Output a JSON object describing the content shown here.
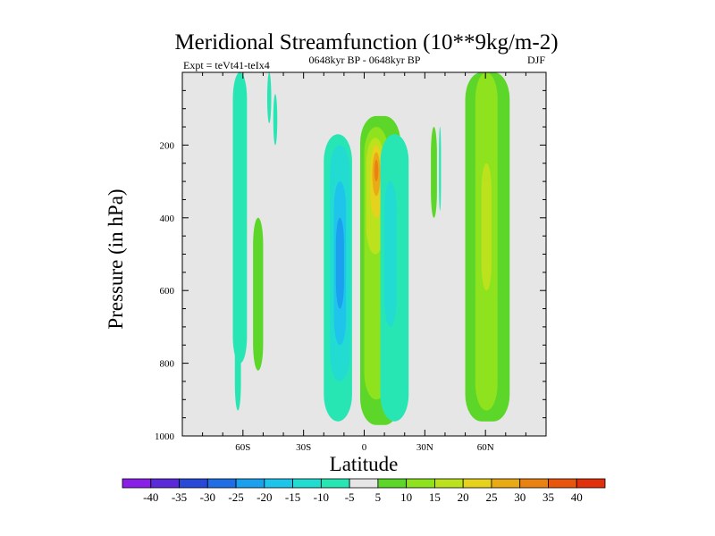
{
  "chart_data": {
    "type": "contour",
    "title": "Meridional Streamfunction (10**9kg/m-2)",
    "subtitle_left": "Expt = teVt41-teIx4",
    "subtitle_center": "0648kyr BP - 0648kyr BP",
    "subtitle_right": "DJF",
    "xlabel": "Latitude",
    "ylabel": "Pressure (in hPa)",
    "xlim": [
      -90,
      90
    ],
    "ylim": [
      1000,
      0
    ],
    "x_ticks": [
      {
        "value": -60,
        "label": "60S"
      },
      {
        "value": -30,
        "label": "30S"
      },
      {
        "value": 0,
        "label": "0"
      },
      {
        "value": 30,
        "label": "30N"
      },
      {
        "value": 60,
        "label": "60N"
      }
    ],
    "y_ticks": [
      {
        "value": 200,
        "label": "200"
      },
      {
        "value": 400,
        "label": "400"
      },
      {
        "value": 600,
        "label": "600"
      },
      {
        "value": 800,
        "label": "800"
      },
      {
        "value": 1000,
        "label": "1000"
      }
    ],
    "background_color": "#e6e6e6",
    "colorbar": {
      "levels": [
        "-40",
        "-35",
        "-30",
        "-25",
        "-20",
        "-15",
        "-10",
        "-5",
        "5",
        "10",
        "15",
        "20",
        "25",
        "30",
        "35",
        "40"
      ],
      "colors": [
        "#8a20e8",
        "#5a2ad8",
        "#2848d8",
        "#1f6ee6",
        "#1aa0ee",
        "#1ec4ea",
        "#22dcd2",
        "#28e6b4",
        "#e6e6e6",
        "#5cd628",
        "#8ee21e",
        "#bce21e",
        "#e6d21c",
        "#eaaa16",
        "#ea8212",
        "#e8560e",
        "#e0300c"
      ]
    },
    "regions": [
      {
        "name": "band-sh-upper-neg",
        "level": -5,
        "lat": [
          -65,
          -58
        ],
        "p": [
          0,
          800
        ]
      },
      {
        "name": "band-sh-narrow-neg",
        "level": -5,
        "lat": [
          -64,
          -61
        ],
        "p": [
          600,
          930
        ]
      },
      {
        "name": "band-sh-pos",
        "level": 5,
        "lat": [
          -55,
          -50
        ],
        "p": [
          400,
          820
        ]
      },
      {
        "name": "cell-sh-top-neg",
        "level": -5,
        "lat": [
          -48,
          -46
        ],
        "p": [
          0,
          140
        ]
      },
      {
        "name": "cell-sh-top-neg2",
        "level": -5,
        "lat": [
          -45,
          -43
        ],
        "p": [
          60,
          200
        ]
      },
      {
        "name": "cell-south-neg-outer",
        "level": -5,
        "lat": [
          -20,
          -6
        ],
        "p": [
          170,
          960
        ]
      },
      {
        "name": "cell-south-neg-10",
        "level": -10,
        "lat": [
          -17,
          -7
        ],
        "p": [
          200,
          850
        ]
      },
      {
        "name": "cell-south-neg-15",
        "level": -15,
        "lat": [
          -15,
          -9
        ],
        "p": [
          300,
          750
        ]
      },
      {
        "name": "cell-south-neg-20",
        "level": -20,
        "lat": [
          -14,
          -10
        ],
        "p": [
          400,
          650
        ]
      },
      {
        "name": "cell-eq-pos-outer",
        "level": 5,
        "lat": [
          -2,
          18
        ],
        "p": [
          120,
          970
        ]
      },
      {
        "name": "cell-eq-pos-10",
        "level": 10,
        "lat": [
          0,
          12
        ],
        "p": [
          150,
          900
        ]
      },
      {
        "name": "cell-eq-pos-15",
        "level": 15,
        "lat": [
          1,
          10
        ],
        "p": [
          180,
          500
        ]
      },
      {
        "name": "cell-eq-pos-20",
        "level": 20,
        "lat": [
          3,
          9
        ],
        "p": [
          200,
          400
        ]
      },
      {
        "name": "cell-eq-pos-25",
        "level": 25,
        "lat": [
          4,
          8
        ],
        "p": [
          220,
          340
        ]
      },
      {
        "name": "cell-eq-pos-30",
        "level": 30,
        "lat": [
          5,
          7
        ],
        "p": [
          240,
          300
        ]
      },
      {
        "name": "cell-north-neg-outer",
        "level": -5,
        "lat": [
          8,
          22
        ],
        "p": [
          170,
          960
        ]
      },
      {
        "name": "cell-north-neg-10",
        "level": -10,
        "lat": [
          10,
          16
        ],
        "p": [
          300,
          700
        ]
      },
      {
        "name": "band-nh-pos-35",
        "level": 5,
        "lat": [
          33,
          36
        ],
        "p": [
          150,
          400
        ]
      },
      {
        "name": "band-nh-neg-37",
        "level": -5,
        "lat": [
          37,
          38
        ],
        "p": [
          150,
          380
        ]
      },
      {
        "name": "band-nh-pos-large",
        "level": 5,
        "lat": [
          50,
          72
        ],
        "p": [
          0,
          960
        ]
      },
      {
        "name": "band-nh-pos-10",
        "level": 10,
        "lat": [
          55,
          66
        ],
        "p": [
          0,
          930
        ]
      },
      {
        "name": "band-nh-pos-15",
        "level": 15,
        "lat": [
          58,
          63
        ],
        "p": [
          250,
          600
        ]
      }
    ]
  }
}
